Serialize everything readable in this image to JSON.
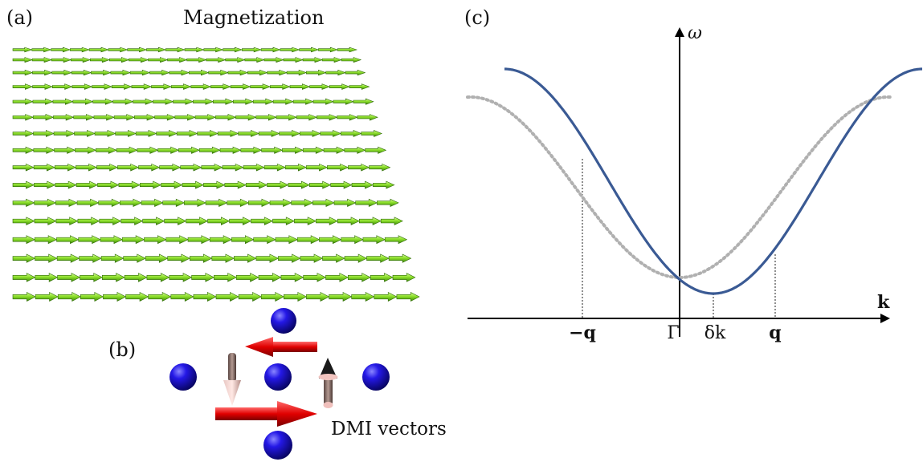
{
  "panel_a": {
    "label": "(a)",
    "title": "Magnetization",
    "rows": 16,
    "arrow_color_light": "#b4f26a",
    "arrow_color_dark": "#4aa012"
  },
  "panel_b": {
    "label": "(b)",
    "annotation": "DMI vectors",
    "atom_color": "#1a10d8",
    "dmi_arrow_color": "#d40000",
    "spin_color": "#9a7a72"
  },
  "panel_c": {
    "label": "(c)",
    "y_axis_label": "ω",
    "x_axis_label": "k",
    "tick_labels": {
      "neg_q": "−q",
      "gamma": "Γ",
      "delta_k": "δk",
      "q": "q"
    },
    "solid_curve_color": "#3a5a94",
    "dotted_curve_color": "#b0b0b0"
  }
}
